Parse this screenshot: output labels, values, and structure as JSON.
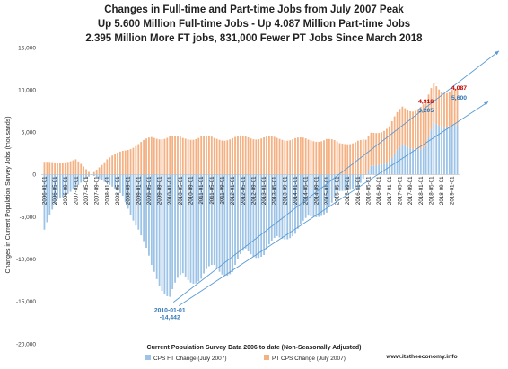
{
  "chart_data": {
    "type": "bar",
    "title_lines": [
      "Changes in Full-time and Part-time Jobs from July 2007 Peak",
      "Up 5.600 Million Full-time Jobs - Up 4.087 Million Part-time Jobs",
      "2.395 Million More FT jobs, 831,000 Fewer PT Jobs Since March 2018"
    ],
    "ylabel": "Changes in Current Population Survey Jobs (thousands)",
    "xlabel": "Current Population Survey Data 2006 to date (Non-Seasonally Adjusted)",
    "ylim": [
      -20000,
      15000
    ],
    "yticks": [
      "15,000",
      "10,000",
      "5,000",
      "0",
      "-5,000",
      "-10,000",
      "-15,000",
      "-20,000"
    ],
    "ytick_values": [
      15000,
      10000,
      5000,
      0,
      -5000,
      -10000,
      -15000,
      -20000
    ],
    "stacked": true,
    "start_month": "2006-01",
    "end_month": "2019-03",
    "x_tick_labels": [
      "2006-01-01",
      "2006-05-01",
      "2006-09-01",
      "2007-01-01",
      "2007-05-01",
      "2007-09-01",
      "2008-01-01",
      "2008-05-01",
      "2008-09-01",
      "2009-01-01",
      "2009-05-01",
      "2009-09-01",
      "2010-01-01",
      "2010-05-01",
      "2010-09-01",
      "2011-01-01",
      "2011-05-01",
      "2011-09-01",
      "2012-01-01",
      "2012-05-01",
      "2012-09-01",
      "2013-01-01",
      "2013-05-01",
      "2013-09-01",
      "2014-01-01",
      "2014-05-01",
      "2014-09-01",
      "2015-01-01",
      "2015-05-01",
      "2015-09-01",
      "2016-01-01",
      "2016-05-01",
      "2016-09-01",
      "2017-01-01",
      "2017-05-01",
      "2017-09-01",
      "2018-01-01",
      "2018-05-01",
      "2018-09-01",
      "2019-01-01"
    ],
    "series": [
      {
        "name": "CPS FT Change (July 2007)",
        "color": "#9DC3E6",
        "anchors": [
          [
            "2006-01",
            -6500
          ],
          [
            "2006-06",
            -3000
          ],
          [
            "2007-01",
            -1500
          ],
          [
            "2007-07",
            0
          ],
          [
            "2008-01",
            -1000
          ],
          [
            "2008-07",
            -2500
          ],
          [
            "2009-01",
            -6500
          ],
          [
            "2009-06",
            -11000
          ],
          [
            "2010-01",
            -14442
          ],
          [
            "2010-06",
            -12000
          ],
          [
            "2011-01",
            -12300
          ],
          [
            "2011-06",
            -11000
          ],
          [
            "2012-01",
            -11500
          ],
          [
            "2012-06",
            -9000
          ],
          [
            "2013-01",
            -9500
          ],
          [
            "2013-06",
            -7500
          ],
          [
            "2014-01",
            -7000
          ],
          [
            "2014-06",
            -5000
          ],
          [
            "2015-01",
            -4500
          ],
          [
            "2015-06",
            -2000
          ],
          [
            "2016-01",
            -1500
          ],
          [
            "2016-06",
            1000
          ],
          [
            "2017-01",
            1500
          ],
          [
            "2017-06",
            3500
          ],
          [
            "2018-01",
            3000
          ],
          [
            "2018-03",
            3205
          ],
          [
            "2018-06",
            6000
          ],
          [
            "2019-01",
            5800
          ],
          [
            "2019-03",
            5600
          ]
        ]
      },
      {
        "name": "PT CPS Change (July 2007)",
        "color": "#F4B183",
        "anchors": [
          [
            "2006-01",
            1500
          ],
          [
            "2006-06",
            1300
          ],
          [
            "2007-01",
            1800
          ],
          [
            "2007-07",
            0
          ],
          [
            "2008-01",
            1800
          ],
          [
            "2008-07",
            2800
          ],
          [
            "2009-01",
            3600
          ],
          [
            "2009-06",
            4300
          ],
          [
            "2010-01",
            4500
          ],
          [
            "2010-06",
            4200
          ],
          [
            "2011-01",
            4500
          ],
          [
            "2011-06",
            4200
          ],
          [
            "2012-01",
            4300
          ],
          [
            "2012-06",
            4400
          ],
          [
            "2013-01",
            4400
          ],
          [
            "2013-06",
            4200
          ],
          [
            "2014-01",
            4300
          ],
          [
            "2014-06",
            4000
          ],
          [
            "2015-01",
            4200
          ],
          [
            "2015-06",
            3600
          ],
          [
            "2016-01",
            4000
          ],
          [
            "2016-06",
            3800
          ],
          [
            "2017-01",
            4200
          ],
          [
            "2017-06",
            4300
          ],
          [
            "2018-01",
            5000
          ],
          [
            "2018-03",
            4918
          ],
          [
            "2018-06",
            4500
          ],
          [
            "2019-01",
            4200
          ],
          [
            "2019-03",
            4087
          ]
        ]
      }
    ],
    "annotations": [
      {
        "text": "2010-01-01",
        "color": "#2F75B6"
      },
      {
        "text": "-14,442",
        "color": "#2F75B6"
      },
      {
        "text": "4,918",
        "color": "#C00000"
      },
      {
        "text": "3,205",
        "color": "#2F75B6"
      },
      {
        "text": "4,087",
        "color": "#C00000"
      },
      {
        "text": "5,600",
        "color": "#2F75B6"
      }
    ],
    "trend_lines": 2,
    "grid": false,
    "legend_position": "bottom"
  },
  "credit": "www.itstheeconomy.info"
}
